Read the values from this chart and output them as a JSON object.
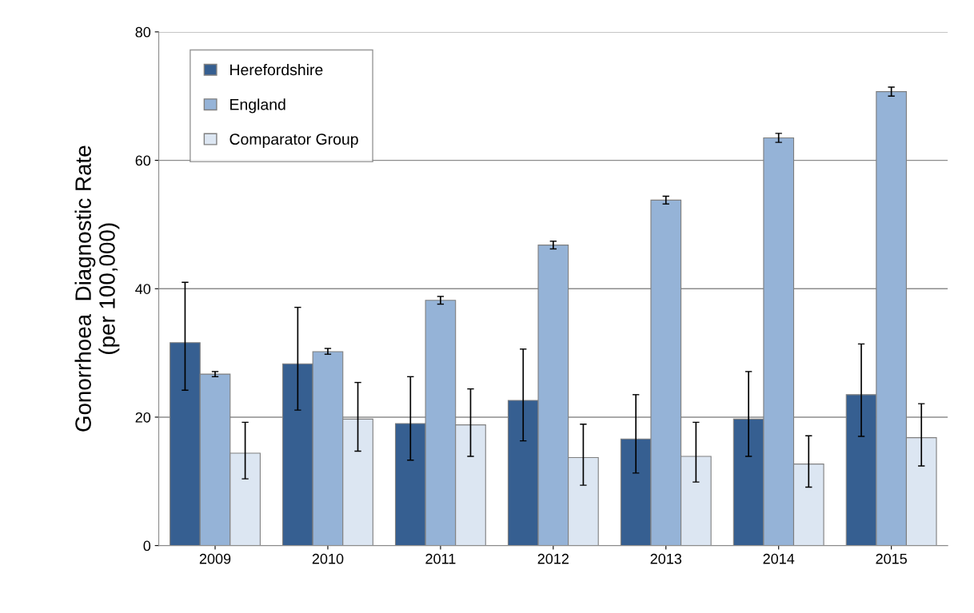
{
  "chart_data": {
    "type": "bar",
    "ylabel": "Gonorrhoea  Diagnostic Rate\n(per 100,000)",
    "categories": [
      "2009",
      "2010",
      "2011",
      "2012",
      "2013",
      "2014",
      "2015"
    ],
    "series": [
      {
        "name": "Herefordshire",
        "color": "#365f91",
        "values": [
          31.6,
          28.3,
          19.0,
          22.6,
          16.6,
          19.7,
          23.5
        ],
        "errors": [
          [
            24.2,
            41.0
          ],
          [
            21.1,
            37.1
          ],
          [
            13.3,
            26.3
          ],
          [
            16.3,
            30.6
          ],
          [
            11.3,
            23.5
          ],
          [
            13.9,
            27.1
          ],
          [
            17.0,
            31.4
          ]
        ]
      },
      {
        "name": "England",
        "color": "#95b3d7",
        "values": [
          26.7,
          30.2,
          38.2,
          46.8,
          53.8,
          63.5,
          70.7
        ],
        "errors": [
          [
            26.3,
            27.1
          ],
          [
            29.8,
            30.7
          ],
          [
            37.6,
            38.8
          ],
          [
            46.2,
            47.4
          ],
          [
            53.2,
            54.4
          ],
          [
            62.8,
            64.2
          ],
          [
            70.0,
            71.4
          ]
        ]
      },
      {
        "name": "Comparator Group",
        "color": "#dce6f2",
        "values": [
          14.4,
          19.7,
          18.8,
          13.7,
          13.9,
          12.7,
          16.8
        ],
        "errors": [
          [
            10.4,
            19.2
          ],
          [
            14.7,
            25.4
          ],
          [
            13.9,
            24.4
          ],
          [
            9.4,
            18.9
          ],
          [
            9.9,
            19.2
          ],
          [
            9.1,
            17.1
          ],
          [
            12.4,
            22.1
          ]
        ]
      }
    ],
    "ylim": [
      0,
      80
    ],
    "yticks": [
      0,
      20,
      40,
      60,
      80
    ],
    "grid": "y",
    "legend": "top left"
  }
}
